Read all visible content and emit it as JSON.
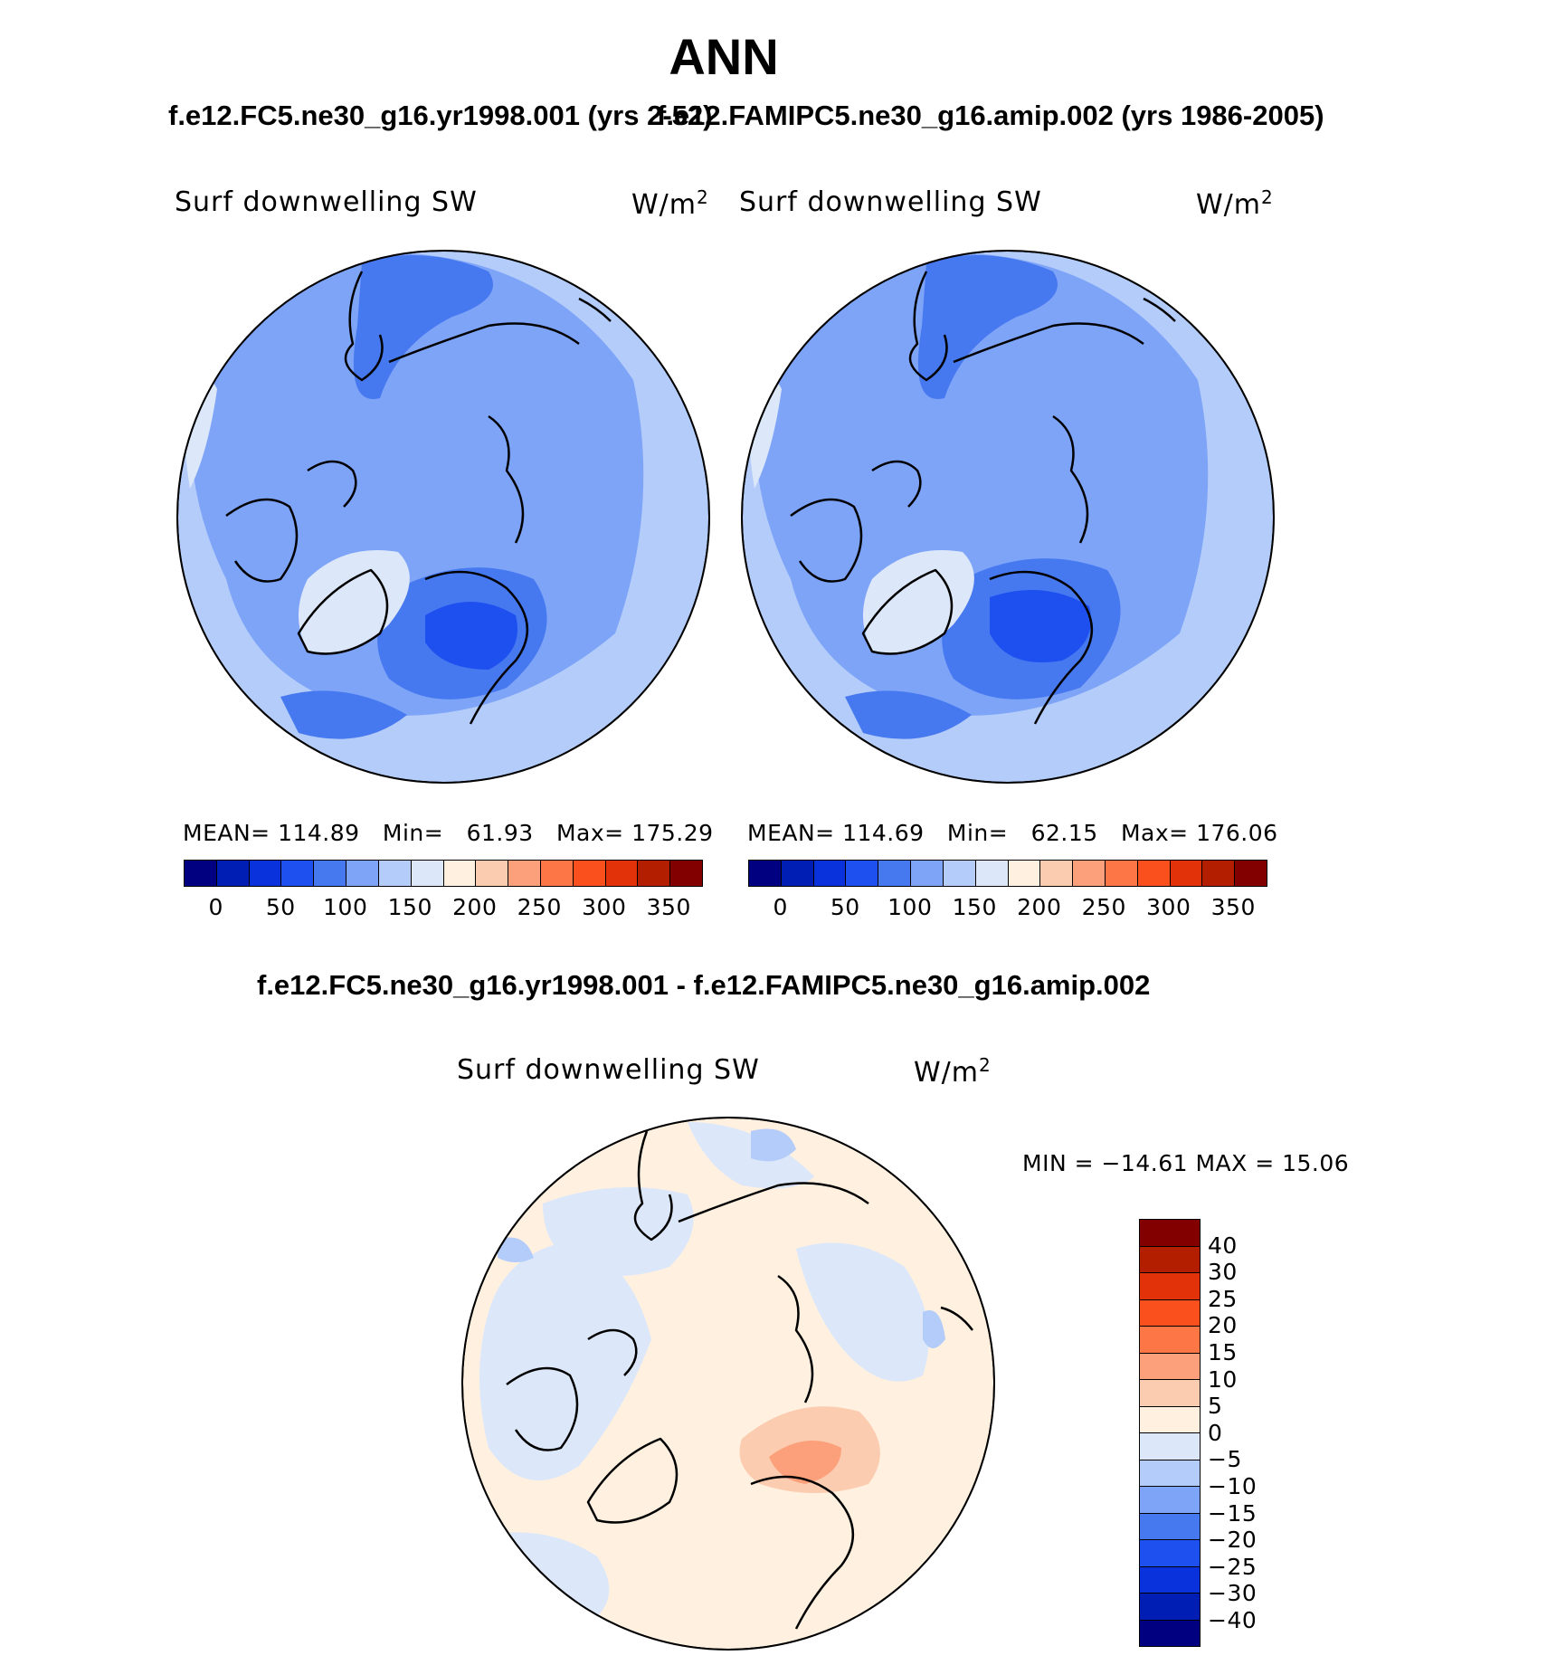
{
  "title": "ANN",
  "subtitle_left": "f.e12.FC5.ne30_g16.yr1998.001 (yrs 2-52)",
  "subtitle_right": "f.e12.FAMIPC5.ne30_g16.amip.002 (yrs 1986-2005)",
  "diff_title": "f.e12.FC5.ne30_g16.yr1998.001 - f.e12.FAMIPC5.ne30_g16.amip.002",
  "panels": [
    {
      "variable": "Surf downwelling SW",
      "units": "W/m",
      "units_sup": "2",
      "mean_label": "MEAN=",
      "mean": "114.89",
      "min_label": "Min=",
      "min": "61.93",
      "max_label": "Max=",
      "max": "175.29"
    },
    {
      "variable": "Surf downwelling SW",
      "units": "W/m",
      "units_sup": "2",
      "mean_label": "MEAN=",
      "mean": "114.69",
      "min_label": "Min=",
      "min": "62.15",
      "max_label": "Max=",
      "max": "176.06"
    }
  ],
  "diff_panel": {
    "variable": "Surf downwelling SW",
    "units": "W/m",
    "units_sup": "2",
    "minmax": "MIN = −14.61 MAX =  15.06"
  },
  "abs_colorbar": {
    "ticks": [
      "0",
      "50",
      "100",
      "150",
      "200",
      "250",
      "300",
      "350"
    ],
    "colors": [
      "#000080",
      "#001eb4",
      "#0a32dc",
      "#1e50f0",
      "#4678f0",
      "#7ea4f8",
      "#b4ccfa",
      "#dce8fa",
      "#fff0e0",
      "#fcccb0",
      "#fca07c",
      "#fc7646",
      "#fa501e",
      "#e1320a",
      "#b41e00",
      "#820000"
    ]
  },
  "diff_colorbar": {
    "ticks": [
      "40",
      "30",
      "25",
      "20",
      "15",
      "10",
      "5",
      "0",
      "−5",
      "−10",
      "−15",
      "−20",
      "−25",
      "−30",
      "−40"
    ],
    "colors": [
      "#820000",
      "#b41e00",
      "#e1320a",
      "#fa501e",
      "#fc7646",
      "#fca07c",
      "#fcccb0",
      "#fff0e0",
      "#dce8fa",
      "#b4ccfa",
      "#7ea4f8",
      "#4678f0",
      "#1e50f0",
      "#0a32dc",
      "#001eb4",
      "#000080"
    ]
  }
}
